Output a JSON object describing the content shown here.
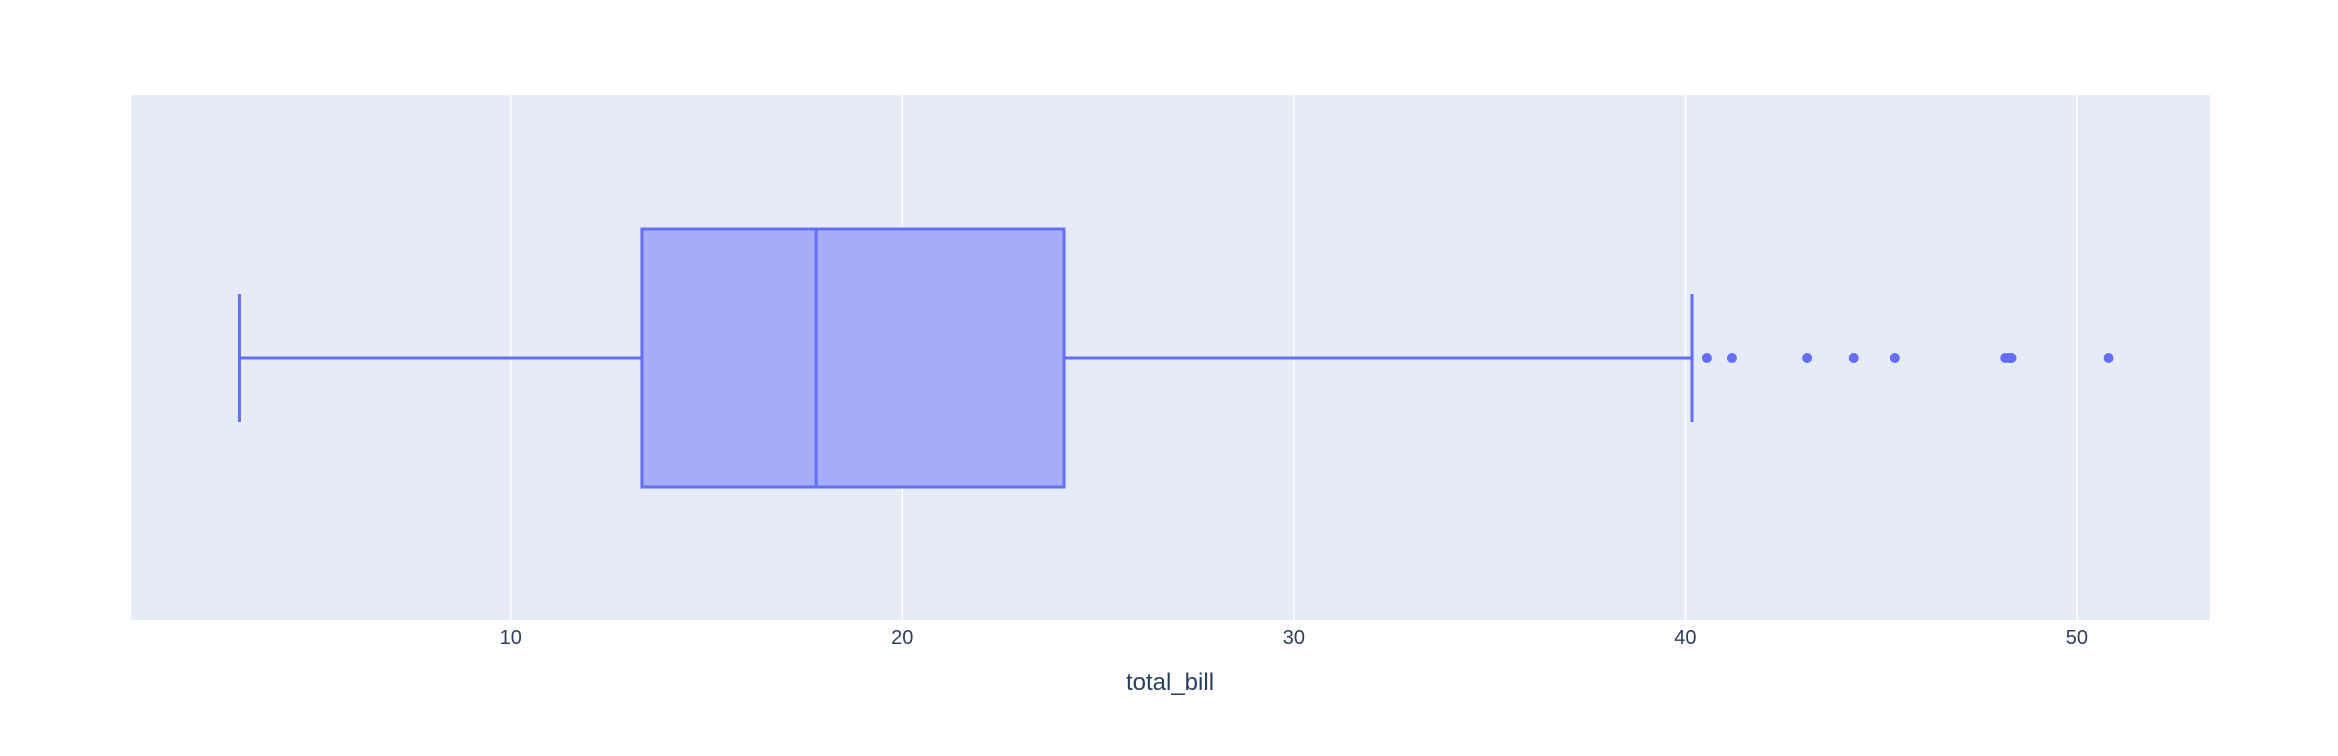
{
  "chart_data": {
    "type": "box",
    "orientation": "horizontal",
    "title": "",
    "xlabel": "total_bill",
    "ylabel": "",
    "xlim": [
      0.3,
      53.4
    ],
    "x_ticks": [
      10,
      20,
      30,
      40,
      50
    ],
    "x_tick_labels": [
      "10",
      "20",
      "30",
      "40",
      "50"
    ],
    "grid": true,
    "legend": "none",
    "series": [
      {
        "min": 3.07,
        "q1": 13.35,
        "median": 17.8,
        "q3": 24.13,
        "upper_fence": 40.17,
        "outliers": [
          40.55,
          41.19,
          43.11,
          44.3,
          45.35,
          48.17,
          48.27,
          48.33,
          50.81
        ]
      }
    ]
  },
  "colors": {
    "plot_background": "#e5ecf6",
    "grid": "#ffffff",
    "box_line": "#636efa",
    "box_fill": "#a7adf8",
    "tick_text": "#2a3f5f"
  }
}
